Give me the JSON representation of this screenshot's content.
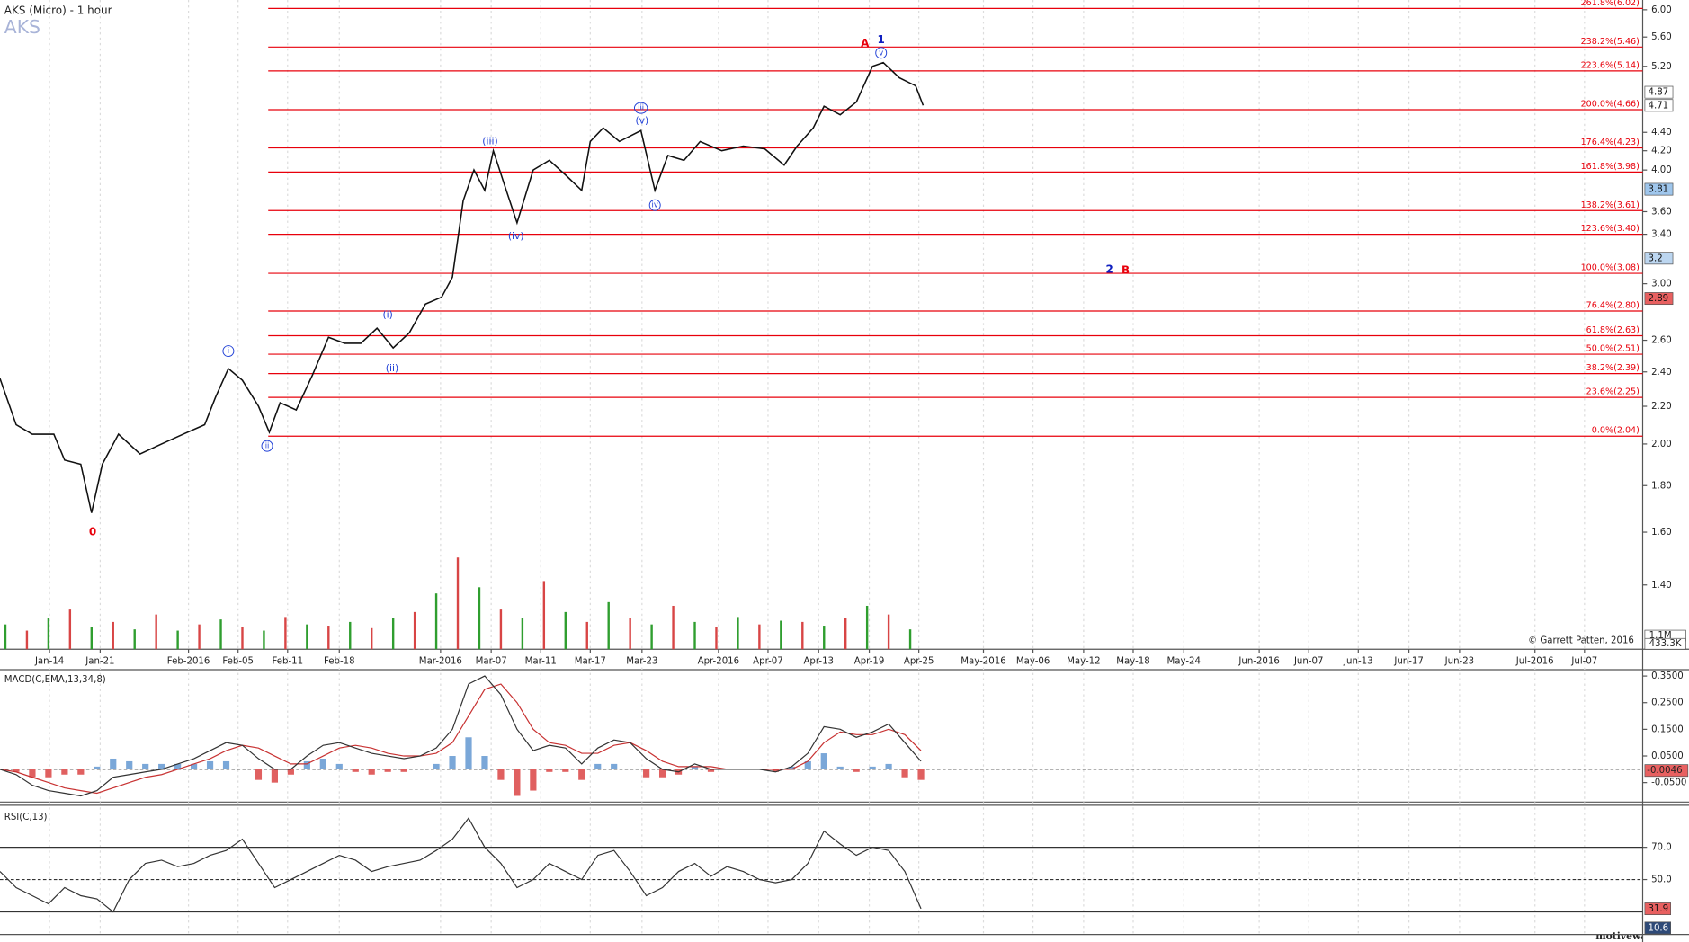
{
  "chart_data": {
    "type": "line",
    "title": "AKS (Micro) - 1 hour",
    "symbol": "AKS",
    "copyright": "© Garrett Patten, 2016",
    "watermark": "motivewave.com",
    "log_scale": true,
    "color": "#111111",
    "xlim": [
      0,
      1525
    ],
    "xticks": [
      {
        "value": 46,
        "label": "Jan-14"
      },
      {
        "value": 93,
        "label": "Jan-21"
      },
      {
        "value": 175,
        "label": "Feb-2016"
      },
      {
        "value": 221,
        "label": "Feb-05"
      },
      {
        "value": 267,
        "label": "Feb-11"
      },
      {
        "value": 315,
        "label": "Feb-18"
      },
      {
        "value": 409,
        "label": "Mar-2016"
      },
      {
        "value": 456,
        "label": "Mar-07"
      },
      {
        "value": 502,
        "label": "Mar-11"
      },
      {
        "value": 548,
        "label": "Mar-17"
      },
      {
        "value": 596,
        "label": "Mar-23"
      },
      {
        "value": 667,
        "label": "Apr-2016"
      },
      {
        "value": 713,
        "label": "Apr-07"
      },
      {
        "value": 760,
        "label": "Apr-13"
      },
      {
        "value": 807,
        "label": "Apr-19"
      },
      {
        "value": 853,
        "label": "Apr-25"
      },
      {
        "value": 913,
        "label": "May-2016"
      },
      {
        "value": 959,
        "label": "May-06"
      },
      {
        "value": 1006,
        "label": "May-12"
      },
      {
        "value": 1052,
        "label": "May-18"
      },
      {
        "value": 1099,
        "label": "May-24"
      },
      {
        "value": 1169,
        "label": "Jun-2016"
      },
      {
        "value": 1215,
        "label": "Jun-07"
      },
      {
        "value": 1261,
        "label": "Jun-13"
      },
      {
        "value": 1308,
        "label": "Jun-17"
      },
      {
        "value": 1355,
        "label": "Jun-23"
      },
      {
        "value": 1425,
        "label": "Jul-2016"
      },
      {
        "value": 1471,
        "label": "Jul-07"
      }
    ],
    "ylim": [
      1.19,
      6.15
    ],
    "yticks": [
      {
        "value": 1.4,
        "label": "1.40"
      },
      {
        "value": 1.6,
        "label": "1.60"
      },
      {
        "value": 1.8,
        "label": "1.80"
      },
      {
        "value": 2,
        "label": "2.00"
      },
      {
        "value": 2.2,
        "label": "2.20"
      },
      {
        "value": 2.4,
        "label": "2.40"
      },
      {
        "value": 2.6,
        "label": "2.60"
      },
      {
        "value": 3,
        "label": "3.00"
      },
      {
        "value": 3.4,
        "label": "3.40"
      },
      {
        "value": 3.6,
        "label": "3.60"
      },
      {
        "value": 4,
        "label": "4.00"
      },
      {
        "value": 4.2,
        "label": "4.20"
      },
      {
        "value": 4.4,
        "label": "4.40"
      },
      {
        "value": 5.2,
        "label": "5.20"
      },
      {
        "value": 5.6,
        "label": "5.60"
      },
      {
        "value": 6,
        "label": "6.00"
      }
    ],
    "x": [
      0,
      15,
      30,
      50,
      60,
      75,
      85,
      95,
      110,
      130,
      150,
      170,
      190,
      200,
      212,
      225,
      240,
      250,
      260,
      275,
      290,
      305,
      320,
      335,
      350,
      365,
      380,
      395,
      410,
      420,
      430,
      440,
      450,
      458,
      470,
      480,
      495,
      510,
      525,
      540,
      548,
      560,
      575,
      595,
      608,
      620,
      635,
      650,
      670,
      690,
      710,
      728,
      740,
      755,
      765,
      780,
      795,
      810,
      820,
      835,
      850,
      857
    ],
    "values": [
      2.36,
      2.1,
      2.05,
      2.05,
      1.92,
      1.9,
      1.68,
      1.9,
      2.05,
      1.95,
      2.0,
      2.05,
      2.1,
      2.25,
      2.42,
      2.35,
      2.2,
      2.06,
      2.22,
      2.18,
      2.38,
      2.62,
      2.58,
      2.58,
      2.68,
      2.55,
      2.65,
      2.85,
      2.9,
      3.05,
      3.7,
      4.0,
      3.8,
      4.2,
      3.8,
      3.5,
      4.0,
      4.1,
      3.95,
      3.8,
      4.3,
      4.45,
      4.3,
      4.42,
      3.8,
      4.15,
      4.1,
      4.3,
      4.2,
      4.25,
      4.22,
      4.05,
      4.25,
      4.45,
      4.7,
      4.6,
      4.75,
      5.2,
      5.25,
      5.05,
      4.95,
      4.71
    ],
    "fib_color": "#e8000b",
    "fib_levels": [
      {
        "value": 6.02,
        "label": "261.8%(6.02)"
      },
      {
        "value": 5.46,
        "label": "238.2%(5.46)"
      },
      {
        "value": 5.14,
        "label": "223.6%(5.14)"
      },
      {
        "value": 4.66,
        "label": "200.0%(4.66)"
      },
      {
        "value": 4.23,
        "label": "176.4%(4.23)"
      },
      {
        "value": 3.98,
        "label": "161.8%(3.98)"
      },
      {
        "value": 3.61,
        "label": "138.2%(3.61)"
      },
      {
        "value": 3.4,
        "label": "123.6%(3.40)"
      },
      {
        "value": 3.08,
        "label": "100.0%(3.08)"
      },
      {
        "value": 2.8,
        "label": "76.4%(2.80)"
      },
      {
        "value": 2.63,
        "label": "61.8%(2.63)"
      },
      {
        "value": 2.51,
        "label": "50.0%(2.51)"
      },
      {
        "value": 2.39,
        "label": "38.2%(2.39)"
      },
      {
        "value": 2.25,
        "label": "23.6%(2.25)"
      },
      {
        "value": 2.04,
        "label": "0.0%(2.04)"
      }
    ],
    "annotations": [
      {
        "text": "0",
        "x": 86,
        "y": 1.6,
        "color": "#e8000b",
        "bold": true
      },
      {
        "text": "i",
        "x": 212,
        "y": 2.53,
        "color": "#1f3fd6",
        "circled": true
      },
      {
        "text": "ii",
        "x": 248,
        "y": 1.99,
        "color": "#1f3fd6",
        "circled": true
      },
      {
        "text": "(i)",
        "x": 360,
        "y": 2.77,
        "color": "#1f3fd6"
      },
      {
        "text": "(ii)",
        "x": 364,
        "y": 2.42,
        "color": "#1f3fd6"
      },
      {
        "text": "(iii)",
        "x": 455,
        "y": 4.3,
        "color": "#1f3fd6"
      },
      {
        "text": "(iv)",
        "x": 479,
        "y": 3.38,
        "color": "#1f3fd6"
      },
      {
        "text": "iii",
        "x": 595,
        "y": 4.68,
        "color": "#1f3fd6",
        "circled": true
      },
      {
        "text": "(v)",
        "x": 596,
        "y": 4.53,
        "color": "#1f3fd6"
      },
      {
        "text": "iv",
        "x": 608,
        "y": 3.66,
        "color": "#1f3fd6",
        "circled": true
      },
      {
        "text": "A",
        "x": 803,
        "y": 5.51,
        "color": "#e8000b",
        "bold": true
      },
      {
        "text": "1",
        "x": 818,
        "y": 5.56,
        "color": "#1020c0",
        "bold": true
      },
      {
        "text": "v",
        "x": 818,
        "y": 5.38,
        "color": "#1f3fd6",
        "circled": true
      },
      {
        "text": "2",
        "x": 1030,
        "y": 3.11,
        "color": "#1020c0",
        "bold": true
      },
      {
        "text": "B",
        "x": 1045,
        "y": 3.1,
        "color": "#e8000b",
        "bold": true
      }
    ],
    "price_tags": [
      {
        "value": 4.87,
        "bg": "#ffffff",
        "fg": "#111111"
      },
      {
        "value": 4.71,
        "bg": "#ffffff",
        "fg": "#111111"
      },
      {
        "value": 3.81,
        "bg": "#9fc6ec",
        "fg": "#111111"
      },
      {
        "value": 3.2,
        "bg": "#bcd6f0",
        "fg": "#111111"
      },
      {
        "value": 2.89,
        "bg": "#e86060",
        "fg": "#111111"
      }
    ],
    "volume": {
      "ylim": [
        0,
        52.4
      ],
      "colors": [
        "#2f9e2f",
        "#d84545"
      ],
      "x": [
        5,
        25,
        45,
        65,
        85,
        105,
        125,
        145,
        165,
        185,
        205,
        225,
        245,
        265,
        285,
        305,
        325,
        345,
        365,
        385,
        405,
        425,
        445,
        465,
        485,
        505,
        525,
        545,
        565,
        585,
        605,
        625,
        645,
        665,
        685,
        705,
        725,
        745,
        765,
        785,
        805,
        825,
        845
      ],
      "values": [
        2.0,
        1.5,
        2.5,
        3.2,
        1.8,
        2.2,
        1.6,
        2.8,
        1.5,
        2.0,
        2.4,
        1.8,
        1.5,
        2.6,
        2.0,
        1.9,
        2.2,
        1.7,
        2.5,
        3.0,
        4.5,
        7.4,
        5.0,
        3.2,
        2.5,
        5.5,
        3.0,
        2.2,
        3.8,
        2.5,
        2.0,
        3.5,
        2.2,
        1.8,
        2.6,
        2.0,
        2.3,
        2.2,
        1.9,
        2.5,
        3.5,
        2.8,
        1.6
      ],
      "tags": [
        {
          "value": 1.1,
          "label": "1.1M"
        },
        {
          "value": 0.4333,
          "label": "433.3K"
        }
      ]
    },
    "macd": {
      "title": "MACD(C,EMA,13,34,8)",
      "ylim": [
        -0.123,
        0.374
      ],
      "yticks": [
        {
          "value": 0.35,
          "label": "0.3500"
        },
        {
          "value": 0.25,
          "label": "0.2500"
        },
        {
          "value": 0.15,
          "label": "0.1500"
        },
        {
          "value": 0.05,
          "label": "0.0500"
        },
        {
          "value": -0.05,
          "label": "-0.0500"
        }
      ],
      "x": [
        0,
        15,
        30,
        45,
        60,
        75,
        90,
        105,
        120,
        135,
        150,
        165,
        180,
        195,
        210,
        225,
        240,
        255,
        270,
        285,
        300,
        315,
        330,
        345,
        360,
        375,
        390,
        405,
        420,
        435,
        450,
        465,
        480,
        495,
        510,
        525,
        540,
        555,
        570,
        585,
        600,
        615,
        630,
        645,
        660,
        675,
        690,
        705,
        720,
        735,
        750,
        765,
        780,
        795,
        810,
        825,
        840,
        855
      ],
      "macd": {
        "color": "#333333",
        "values": [
          0.0,
          -0.02,
          -0.06,
          -0.08,
          -0.09,
          -0.1,
          -0.08,
          -0.03,
          -0.02,
          -0.01,
          0.0,
          0.02,
          0.04,
          0.07,
          0.1,
          0.09,
          0.04,
          0.0,
          0.0,
          0.05,
          0.09,
          0.1,
          0.08,
          0.06,
          0.05,
          0.04,
          0.05,
          0.08,
          0.15,
          0.32,
          0.35,
          0.28,
          0.15,
          0.07,
          0.09,
          0.08,
          0.02,
          0.08,
          0.11,
          0.1,
          0.04,
          0.0,
          -0.01,
          0.02,
          0.0,
          0.0,
          0.0,
          0.0,
          -0.01,
          0.01,
          0.06,
          0.16,
          0.15,
          0.12,
          0.14,
          0.17,
          0.1,
          0.03
        ]
      },
      "signal": {
        "color": "#c83232",
        "values": [
          0.0,
          -0.01,
          -0.03,
          -0.05,
          -0.07,
          -0.08,
          -0.09,
          -0.07,
          -0.05,
          -0.03,
          -0.02,
          0.0,
          0.02,
          0.04,
          0.07,
          0.09,
          0.08,
          0.05,
          0.02,
          0.02,
          0.05,
          0.08,
          0.09,
          0.08,
          0.06,
          0.05,
          0.05,
          0.06,
          0.1,
          0.2,
          0.3,
          0.32,
          0.25,
          0.15,
          0.1,
          0.09,
          0.06,
          0.06,
          0.09,
          0.1,
          0.07,
          0.03,
          0.01,
          0.01,
          0.01,
          0.0,
          0.0,
          0.0,
          0.0,
          0.0,
          0.03,
          0.1,
          0.14,
          0.13,
          0.13,
          0.15,
          0.13,
          0.07
        ]
      },
      "histogram": {
        "up_color": "#7aa7d8",
        "down_color": "#e06060",
        "values": [
          0.0,
          -0.01,
          -0.03,
          -0.03,
          -0.02,
          -0.02,
          0.01,
          0.04,
          0.03,
          0.02,
          0.02,
          0.02,
          0.02,
          0.03,
          0.03,
          0.0,
          -0.04,
          -0.05,
          -0.02,
          0.03,
          0.04,
          0.02,
          -0.01,
          -0.02,
          -0.01,
          -0.01,
          0.0,
          0.02,
          0.05,
          0.12,
          0.05,
          -0.04,
          -0.1,
          -0.08,
          -0.01,
          -0.01,
          -0.04,
          0.02,
          0.02,
          0.0,
          -0.03,
          -0.03,
          -0.02,
          0.01,
          -0.01,
          0.0,
          0.0,
          0.0,
          -0.01,
          0.01,
          0.03,
          0.06,
          0.01,
          -0.01,
          0.01,
          0.02,
          -0.03,
          -0.04
        ]
      },
      "tag": {
        "value": -0.0046,
        "label": "-0.0046",
        "bg": "#e86060"
      }
    },
    "rsi": {
      "title": "RSI(C,13)",
      "ylim": [
        16,
        94.7
      ],
      "yticks": [
        {
          "value": 70,
          "label": "70.0"
        },
        {
          "value": 50,
          "label": "50.0"
        }
      ],
      "levels": [
        70,
        50,
        30
      ],
      "x": [
        0,
        15,
        30,
        45,
        60,
        75,
        90,
        105,
        120,
        135,
        150,
        165,
        180,
        195,
        210,
        225,
        240,
        255,
        270,
        285,
        300,
        315,
        330,
        345,
        360,
        375,
        390,
        405,
        420,
        435,
        450,
        465,
        480,
        495,
        510,
        525,
        540,
        555,
        570,
        585,
        600,
        615,
        630,
        645,
        660,
        675,
        690,
        705,
        720,
        735,
        750,
        765,
        780,
        795,
        810,
        825,
        840,
        855
      ],
      "color": "#333333",
      "values": [
        55,
        45,
        40,
        35,
        45,
        40,
        38,
        30,
        50,
        60,
        62,
        58,
        60,
        65,
        68,
        75,
        60,
        45,
        50,
        55,
        60,
        65,
        62,
        55,
        58,
        60,
        62,
        68,
        75,
        88,
        70,
        60,
        45,
        50,
        60,
        55,
        50,
        65,
        68,
        55,
        40,
        45,
        55,
        60,
        52,
        58,
        55,
        50,
        48,
        50,
        60,
        80,
        72,
        65,
        70,
        68,
        55,
        32
      ],
      "tags": [
        {
          "value": 31.9,
          "label": "31.9",
          "bg": "#e86060",
          "fg": "#111111"
        },
        {
          "value": 10.6,
          "label": "10.6",
          "bg": "#2e4a78",
          "fg": "#ffffff"
        }
      ]
    }
  }
}
